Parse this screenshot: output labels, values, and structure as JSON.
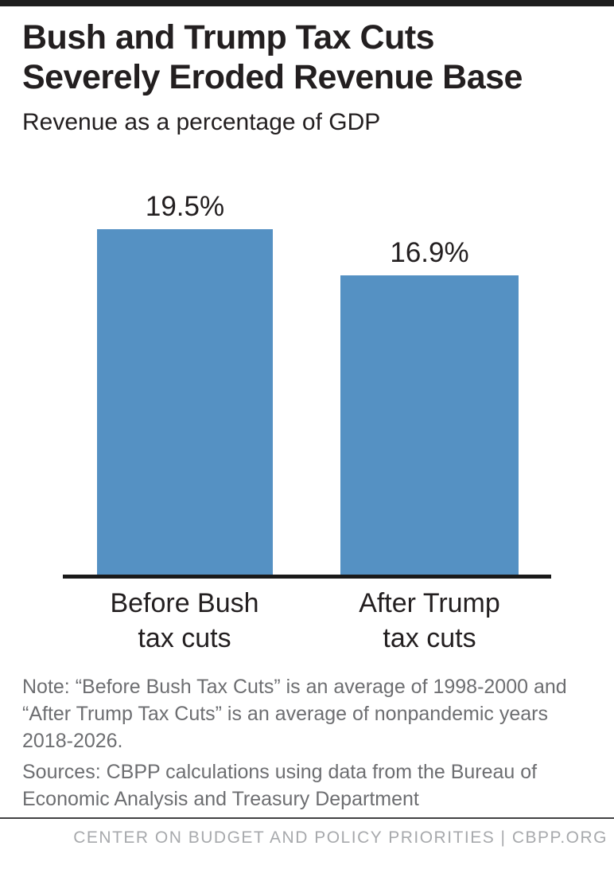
{
  "header": {
    "title_lines": [
      "Bush and Trump Tax Cuts",
      "Severely Eroded Revenue Base"
    ],
    "subtitle": "Revenue as a percentage of GDP"
  },
  "chart_data": {
    "type": "bar",
    "title": "Bush and Trump Tax Cuts Severely Eroded Revenue Base",
    "subtitle": "Revenue as a percentage of GDP",
    "categories": [
      "Before Bush tax cuts",
      "After Trump tax cuts"
    ],
    "tick_labels": [
      "Before Bush\ntax cuts",
      "After Trump\ntax cuts"
    ],
    "values": [
      19.5,
      16.9
    ],
    "value_labels": [
      "19.5%",
      "16.9%"
    ],
    "ylabel": "Revenue as a percentage of GDP",
    "xlabel": "",
    "ylim": [
      0,
      20.5
    ],
    "grid": false,
    "legend": false,
    "bar_color": "#5591c3"
  },
  "note": "Note: “Before Bush Tax Cuts” is an average of 1998-2000 and “After Trump Tax Cuts” is an average of nonpandemic years 2018-2026.",
  "sources": "Sources: CBPP calculations using data from the Bureau of Economic Analysis and Treasury Department",
  "footer": {
    "text": "CENTER ON BUDGET AND POLICY PRIORITIES | CBPP.ORG"
  },
  "colors": {
    "bar": "#5591c3",
    "title": "#231f20",
    "note_text": "#6d6e71",
    "footer_text": "#a7a9ac",
    "axis": "#1a1a1a",
    "top_bar": "#1e1e1e"
  }
}
